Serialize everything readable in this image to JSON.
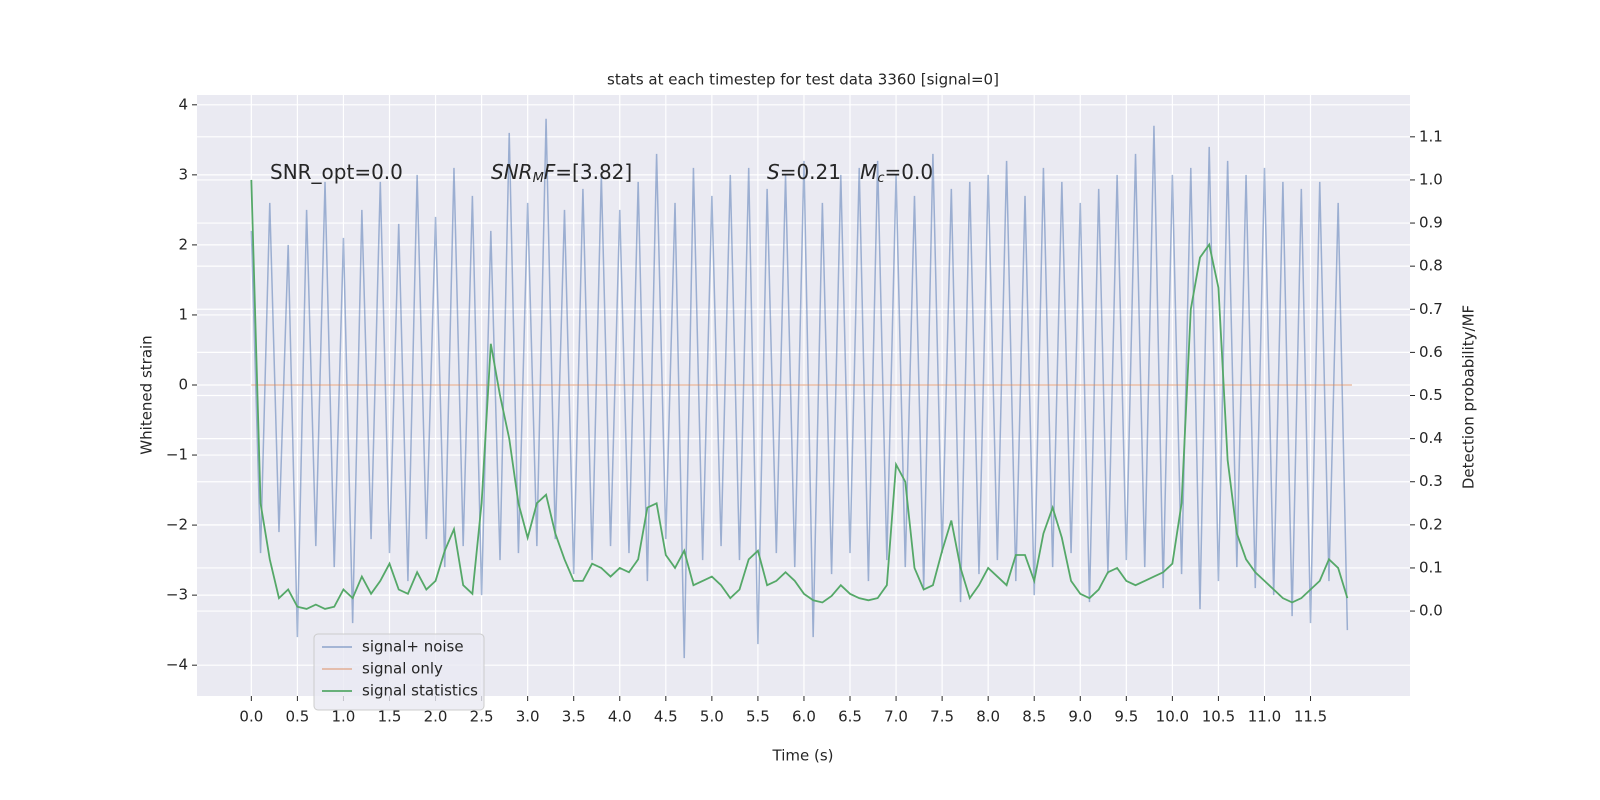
{
  "chart_data": {
    "type": "line",
    "title": "stats at each timestep for test data 3360 [signal=0]",
    "xlabel": "Time (s)",
    "ylabel": "Whitened strain",
    "y2label": "Detection probability/MF",
    "grid": true,
    "legend": "lower left",
    "xlim": [
      -0.59,
      12.58
    ],
    "ylim": [
      -4.44,
      4.14
    ],
    "y2lim": [
      -0.197,
      1.197
    ],
    "xticks": [
      {
        "value": 0,
        "label": "0.0"
      },
      {
        "value": 0.5,
        "label": "0.5"
      },
      {
        "value": 1,
        "label": "1.0"
      },
      {
        "value": 1.5,
        "label": "1.5"
      },
      {
        "value": 2,
        "label": "2.0"
      },
      {
        "value": 2.5,
        "label": "2.5"
      },
      {
        "value": 3,
        "label": "3.0"
      },
      {
        "value": 3.5,
        "label": "3.5"
      },
      {
        "value": 4,
        "label": "4.0"
      },
      {
        "value": 4.5,
        "label": "4.5"
      },
      {
        "value": 5,
        "label": "5.0"
      },
      {
        "value": 5.5,
        "label": "5.5"
      },
      {
        "value": 6,
        "label": "6.0"
      },
      {
        "value": 6.5,
        "label": "6.5"
      },
      {
        "value": 7,
        "label": "7.0"
      },
      {
        "value": 7.5,
        "label": "7.5"
      },
      {
        "value": 8,
        "label": "8.0"
      },
      {
        "value": 8.5,
        "label": "8.5"
      },
      {
        "value": 9,
        "label": "9.0"
      },
      {
        "value": 9.5,
        "label": "9.5"
      },
      {
        "value": 10,
        "label": "10.0"
      },
      {
        "value": 10.5,
        "label": "10.5"
      },
      {
        "value": 11,
        "label": "11.0"
      },
      {
        "value": 11.5,
        "label": "11.5"
      }
    ],
    "yticks": [
      {
        "value": -4,
        "label": "−4"
      },
      {
        "value": -3,
        "label": "−3"
      },
      {
        "value": -2,
        "label": "−2"
      },
      {
        "value": -1,
        "label": "−1"
      },
      0,
      1,
      2,
      3,
      4
    ],
    "y2ticks": [
      {
        "value": 0,
        "label": "0.0"
      },
      {
        "value": 0.1,
        "label": "0.1"
      },
      {
        "value": 0.2,
        "label": "0.2"
      },
      {
        "value": 0.3,
        "label": "0.3"
      },
      {
        "value": 0.4,
        "label": "0.4"
      },
      {
        "value": 0.5,
        "label": "0.5"
      },
      {
        "value": 0.6,
        "label": "0.6"
      },
      {
        "value": 0.7,
        "label": "0.7"
      },
      {
        "value": 0.8,
        "label": "0.8"
      },
      {
        "value": 0.9,
        "label": "0.9"
      },
      {
        "value": 1,
        "label": "1.0"
      },
      {
        "value": 1.1,
        "label": "1.1"
      }
    ],
    "annotations": [
      [
        {
          "text": "SNR_opt=0.0"
        }
      ],
      [
        {
          "text": "SNR",
          "italic": true
        },
        {
          "text": "M",
          "italic": true,
          "sub": true
        },
        {
          "text": "F",
          "italic": true
        },
        {
          "text": "=[3.82]"
        }
      ],
      [
        {
          "text": "S",
          "italic": true
        },
        {
          "text": "=0.21   "
        },
        {
          "text": "M",
          "italic": true
        },
        {
          "text": "c",
          "italic": true,
          "sub": true
        },
        {
          "text": "=0.0"
        }
      ]
    ],
    "series": [
      {
        "name": "signal+ noise",
        "color": "#4c72b0",
        "opacity": 0.5,
        "x": [
          0,
          0.1,
          0.2,
          0.3,
          0.4,
          0.5,
          0.6,
          0.7,
          0.8,
          0.9,
          1,
          1.1,
          1.2,
          1.3,
          1.4,
          1.5,
          1.6,
          1.7,
          1.8,
          1.9,
          2,
          2.1,
          2.2,
          2.3,
          2.4,
          2.5,
          2.6,
          2.7,
          2.8,
          2.9,
          3,
          3.1,
          3.2,
          3.3,
          3.4,
          3.5,
          3.6,
          3.7,
          3.8,
          3.9,
          4,
          4.1,
          4.2,
          4.3,
          4.4,
          4.5,
          4.6,
          4.7,
          4.8,
          4.9,
          5,
          5.1,
          5.2,
          5.3,
          5.4,
          5.5,
          5.6,
          5.7,
          5.8,
          5.9,
          6,
          6.1,
          6.2,
          6.3,
          6.4,
          6.5,
          6.6,
          6.7,
          6.8,
          6.9,
          7,
          7.1,
          7.2,
          7.3,
          7.4,
          7.5,
          7.6,
          7.7,
          7.8,
          7.9,
          8,
          8.1,
          8.2,
          8.3,
          8.4,
          8.5,
          8.6,
          8.7,
          8.8,
          8.9,
          9,
          9.1,
          9.2,
          9.3,
          9.4,
          9.5,
          9.6,
          9.7,
          9.8,
          9.9,
          10,
          10.1,
          10.2,
          10.3,
          10.4,
          10.5,
          10.6,
          10.7,
          10.8,
          10.9,
          11,
          11.1,
          11.2,
          11.3,
          11.4,
          11.5,
          11.6,
          11.7,
          11.8,
          11.9
        ],
        "values": [
          2.2,
          -2.4,
          2.6,
          -2.1,
          2.0,
          -3.6,
          2.5,
          -2.3,
          2.9,
          -2.6,
          2.1,
          -3.4,
          2.5,
          -2.2,
          2.9,
          -2.4,
          2.3,
          -2.8,
          3.0,
          -2.2,
          2.4,
          -2.6,
          3.1,
          -2.3,
          2.7,
          -3.0,
          2.2,
          -2.5,
          3.6,
          -2.4,
          2.6,
          -2.3,
          3.8,
          -2.2,
          2.5,
          -2.7,
          2.8,
          -2.5,
          3.0,
          -2.3,
          2.5,
          -2.4,
          2.9,
          -2.8,
          3.3,
          -2.2,
          2.6,
          -3.9,
          3.1,
          -2.5,
          2.7,
          -2.3,
          3.0,
          -2.5,
          3.1,
          -3.7,
          2.8,
          -2.4,
          3.0,
          -2.6,
          3.2,
          -3.6,
          2.6,
          -2.7,
          3.0,
          -2.4,
          3.1,
          -2.8,
          3.2,
          -2.5,
          3.0,
          -2.6,
          2.7,
          -2.9,
          3.3,
          -2.4,
          2.8,
          -3.1,
          2.9,
          -2.7,
          3.0,
          -2.5,
          3.2,
          -2.8,
          2.7,
          -3.0,
          3.1,
          -2.6,
          2.9,
          -2.4,
          2.6,
          -3.1,
          2.8,
          -2.7,
          3.0,
          -2.5,
          3.3,
          -2.6,
          3.7,
          -2.9,
          3.0,
          -2.7,
          3.1,
          -3.2,
          3.4,
          -2.8,
          3.2,
          -2.6,
          3.0,
          -2.9,
          3.1,
          -3.0,
          2.9,
          -3.3,
          2.8,
          -3.4,
          2.9,
          -2.8,
          2.6,
          -3.5
        ]
      },
      {
        "name": "signal only",
        "color": "#dd8452",
        "opacity": 0.5,
        "x": [
          0,
          11.95
        ],
        "values": [
          0,
          0
        ]
      },
      {
        "name": "signal statistics",
        "color": "#55a868",
        "opacity": 1,
        "axis": "y2",
        "x": [
          0,
          0.1,
          0.2,
          0.3,
          0.4,
          0.5,
          0.6,
          0.7,
          0.8,
          0.9,
          1,
          1.1,
          1.2,
          1.3,
          1.4,
          1.5,
          1.6,
          1.7,
          1.8,
          1.9,
          2,
          2.1,
          2.2,
          2.3,
          2.4,
          2.5,
          2.6,
          2.7,
          2.8,
          2.9,
          3,
          3.1,
          3.2,
          3.3,
          3.4,
          3.5,
          3.6,
          3.7,
          3.8,
          3.9,
          4,
          4.1,
          4.2,
          4.3,
          4.4,
          4.5,
          4.6,
          4.7,
          4.8,
          4.9,
          5,
          5.1,
          5.2,
          5.3,
          5.4,
          5.5,
          5.6,
          5.7,
          5.8,
          5.9,
          6,
          6.1,
          6.2,
          6.3,
          6.4,
          6.5,
          6.6,
          6.7,
          6.8,
          6.9,
          7,
          7.1,
          7.2,
          7.3,
          7.4,
          7.5,
          7.6,
          7.7,
          7.8,
          7.9,
          8,
          8.1,
          8.2,
          8.3,
          8.4,
          8.5,
          8.6,
          8.7,
          8.8,
          8.9,
          9,
          9.1,
          9.2,
          9.3,
          9.4,
          9.5,
          9.6,
          9.7,
          9.8,
          9.9,
          10,
          10.1,
          10.2,
          10.3,
          10.4,
          10.5,
          10.6,
          10.7,
          10.8,
          10.9,
          11,
          11.1,
          11.2,
          11.3,
          11.4,
          11.5,
          11.6,
          11.7,
          11.8,
          11.9
        ],
        "values": [
          1.0,
          0.25,
          0.12,
          0.03,
          0.05,
          0.01,
          0.005,
          0.015,
          0.005,
          0.01,
          0.05,
          0.03,
          0.08,
          0.04,
          0.07,
          0.11,
          0.05,
          0.04,
          0.09,
          0.05,
          0.07,
          0.14,
          0.19,
          0.06,
          0.04,
          0.25,
          0.62,
          0.5,
          0.4,
          0.25,
          0.17,
          0.25,
          0.27,
          0.18,
          0.12,
          0.07,
          0.07,
          0.11,
          0.1,
          0.08,
          0.1,
          0.09,
          0.12,
          0.24,
          0.25,
          0.13,
          0.1,
          0.14,
          0.06,
          0.07,
          0.08,
          0.06,
          0.03,
          0.05,
          0.12,
          0.14,
          0.06,
          0.07,
          0.09,
          0.07,
          0.04,
          0.025,
          0.02,
          0.035,
          0.06,
          0.04,
          0.03,
          0.025,
          0.03,
          0.06,
          0.34,
          0.3,
          0.1,
          0.05,
          0.06,
          0.14,
          0.21,
          0.1,
          0.03,
          0.06,
          0.1,
          0.08,
          0.06,
          0.13,
          0.13,
          0.07,
          0.18,
          0.24,
          0.17,
          0.07,
          0.04,
          0.03,
          0.05,
          0.09,
          0.1,
          0.07,
          0.06,
          0.07,
          0.08,
          0.09,
          0.11,
          0.25,
          0.7,
          0.82,
          0.85,
          0.75,
          0.35,
          0.18,
          0.12,
          0.09,
          0.07,
          0.05,
          0.03,
          0.02,
          0.03,
          0.05,
          0.07,
          0.12,
          0.1,
          0.03
        ]
      }
    ]
  }
}
